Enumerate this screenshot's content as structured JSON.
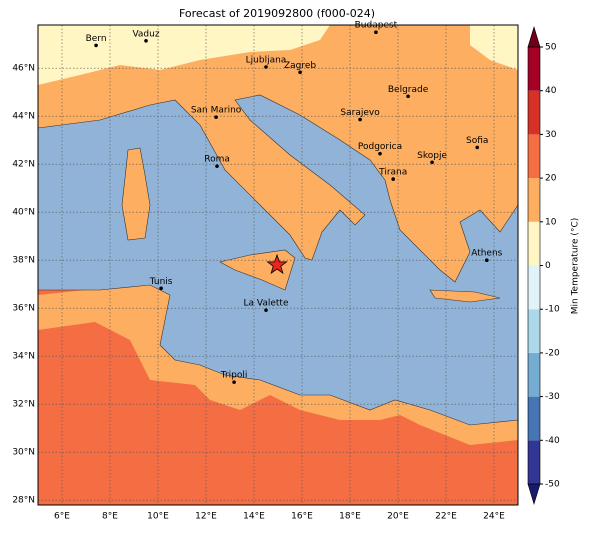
{
  "title": "Forecast of 2019092800 (f000-024)",
  "map": {
    "lon_range": [
      5,
      25
    ],
    "lat_range": [
      27.8,
      47.8
    ],
    "lon_ticks": [
      {
        "value": 6,
        "label": "6°E"
      },
      {
        "value": 8,
        "label": "8°E"
      },
      {
        "value": 10,
        "label": "10°E"
      },
      {
        "value": 12,
        "label": "12°E"
      },
      {
        "value": 14,
        "label": "14°E"
      },
      {
        "value": 16,
        "label": "16°E"
      },
      {
        "value": 18,
        "label": "18°E"
      },
      {
        "value": 20,
        "label": "20°E"
      },
      {
        "value": 22,
        "label": "22°E"
      },
      {
        "value": 24,
        "label": "24°E"
      }
    ],
    "lat_ticks": [
      {
        "value": 28,
        "label": "28°N"
      },
      {
        "value": 30,
        "label": "30°N"
      },
      {
        "value": 32,
        "label": "32°N"
      },
      {
        "value": 34,
        "label": "34°N"
      },
      {
        "value": 36,
        "label": "36°N"
      },
      {
        "value": 38,
        "label": "38°N"
      },
      {
        "value": 40,
        "label": "40°N"
      },
      {
        "value": 42,
        "label": "42°N"
      },
      {
        "value": 44,
        "label": "44°N"
      },
      {
        "value": 46,
        "label": "46°N"
      }
    ],
    "cities": [
      {
        "name": "Bern",
        "lon": 7.42,
        "lat": 46.95
      },
      {
        "name": "Vaduz",
        "lon": 9.5,
        "lat": 47.14
      },
      {
        "name": "Budapest",
        "lon": 19.08,
        "lat": 47.5
      },
      {
        "name": "Ljubljana",
        "lon": 14.5,
        "lat": 46.05
      },
      {
        "name": "Zagreb",
        "lon": 15.92,
        "lat": 45.83
      },
      {
        "name": "Belgrade",
        "lon": 20.42,
        "lat": 44.83
      },
      {
        "name": "San Marino",
        "lon": 12.42,
        "lat": 43.96
      },
      {
        "name": "Sarajevo",
        "lon": 18.42,
        "lat": 43.86
      },
      {
        "name": "Sofia",
        "lon": 23.3,
        "lat": 42.7
      },
      {
        "name": "Podgorica",
        "lon": 19.25,
        "lat": 42.44
      },
      {
        "name": "Skopje",
        "lon": 21.42,
        "lat": 42.08
      },
      {
        "name": "Roma",
        "lon": 12.46,
        "lat": 41.92
      },
      {
        "name": "Tirana",
        "lon": 19.8,
        "lat": 41.38
      },
      {
        "name": "Athens",
        "lon": 23.7,
        "lat": 38.0
      },
      {
        "name": "Tunis",
        "lon": 10.13,
        "lat": 36.83
      },
      {
        "name": "La Valette",
        "lon": 14.5,
        "lat": 35.92
      },
      {
        "name": "Tripoli",
        "lon": 13.17,
        "lat": 32.92
      }
    ],
    "marker": {
      "lon": 14.96,
      "lat": 37.8,
      "color": "#e8251f"
    }
  },
  "colorbar": {
    "label": "Min Temperature (°C)",
    "ticks": [
      -50,
      -40,
      -30,
      -20,
      -10,
      0,
      10,
      20,
      30,
      40,
      50
    ],
    "colors": [
      "#313695",
      "#4575b4",
      "#74add1",
      "#abd9e9",
      "#e0f3f8",
      "#fff6c4",
      "#fdae61",
      "#f46d43",
      "#d73027",
      "#a50026"
    ],
    "extend_colors": [
      "#191970",
      "#700018"
    ]
  }
}
